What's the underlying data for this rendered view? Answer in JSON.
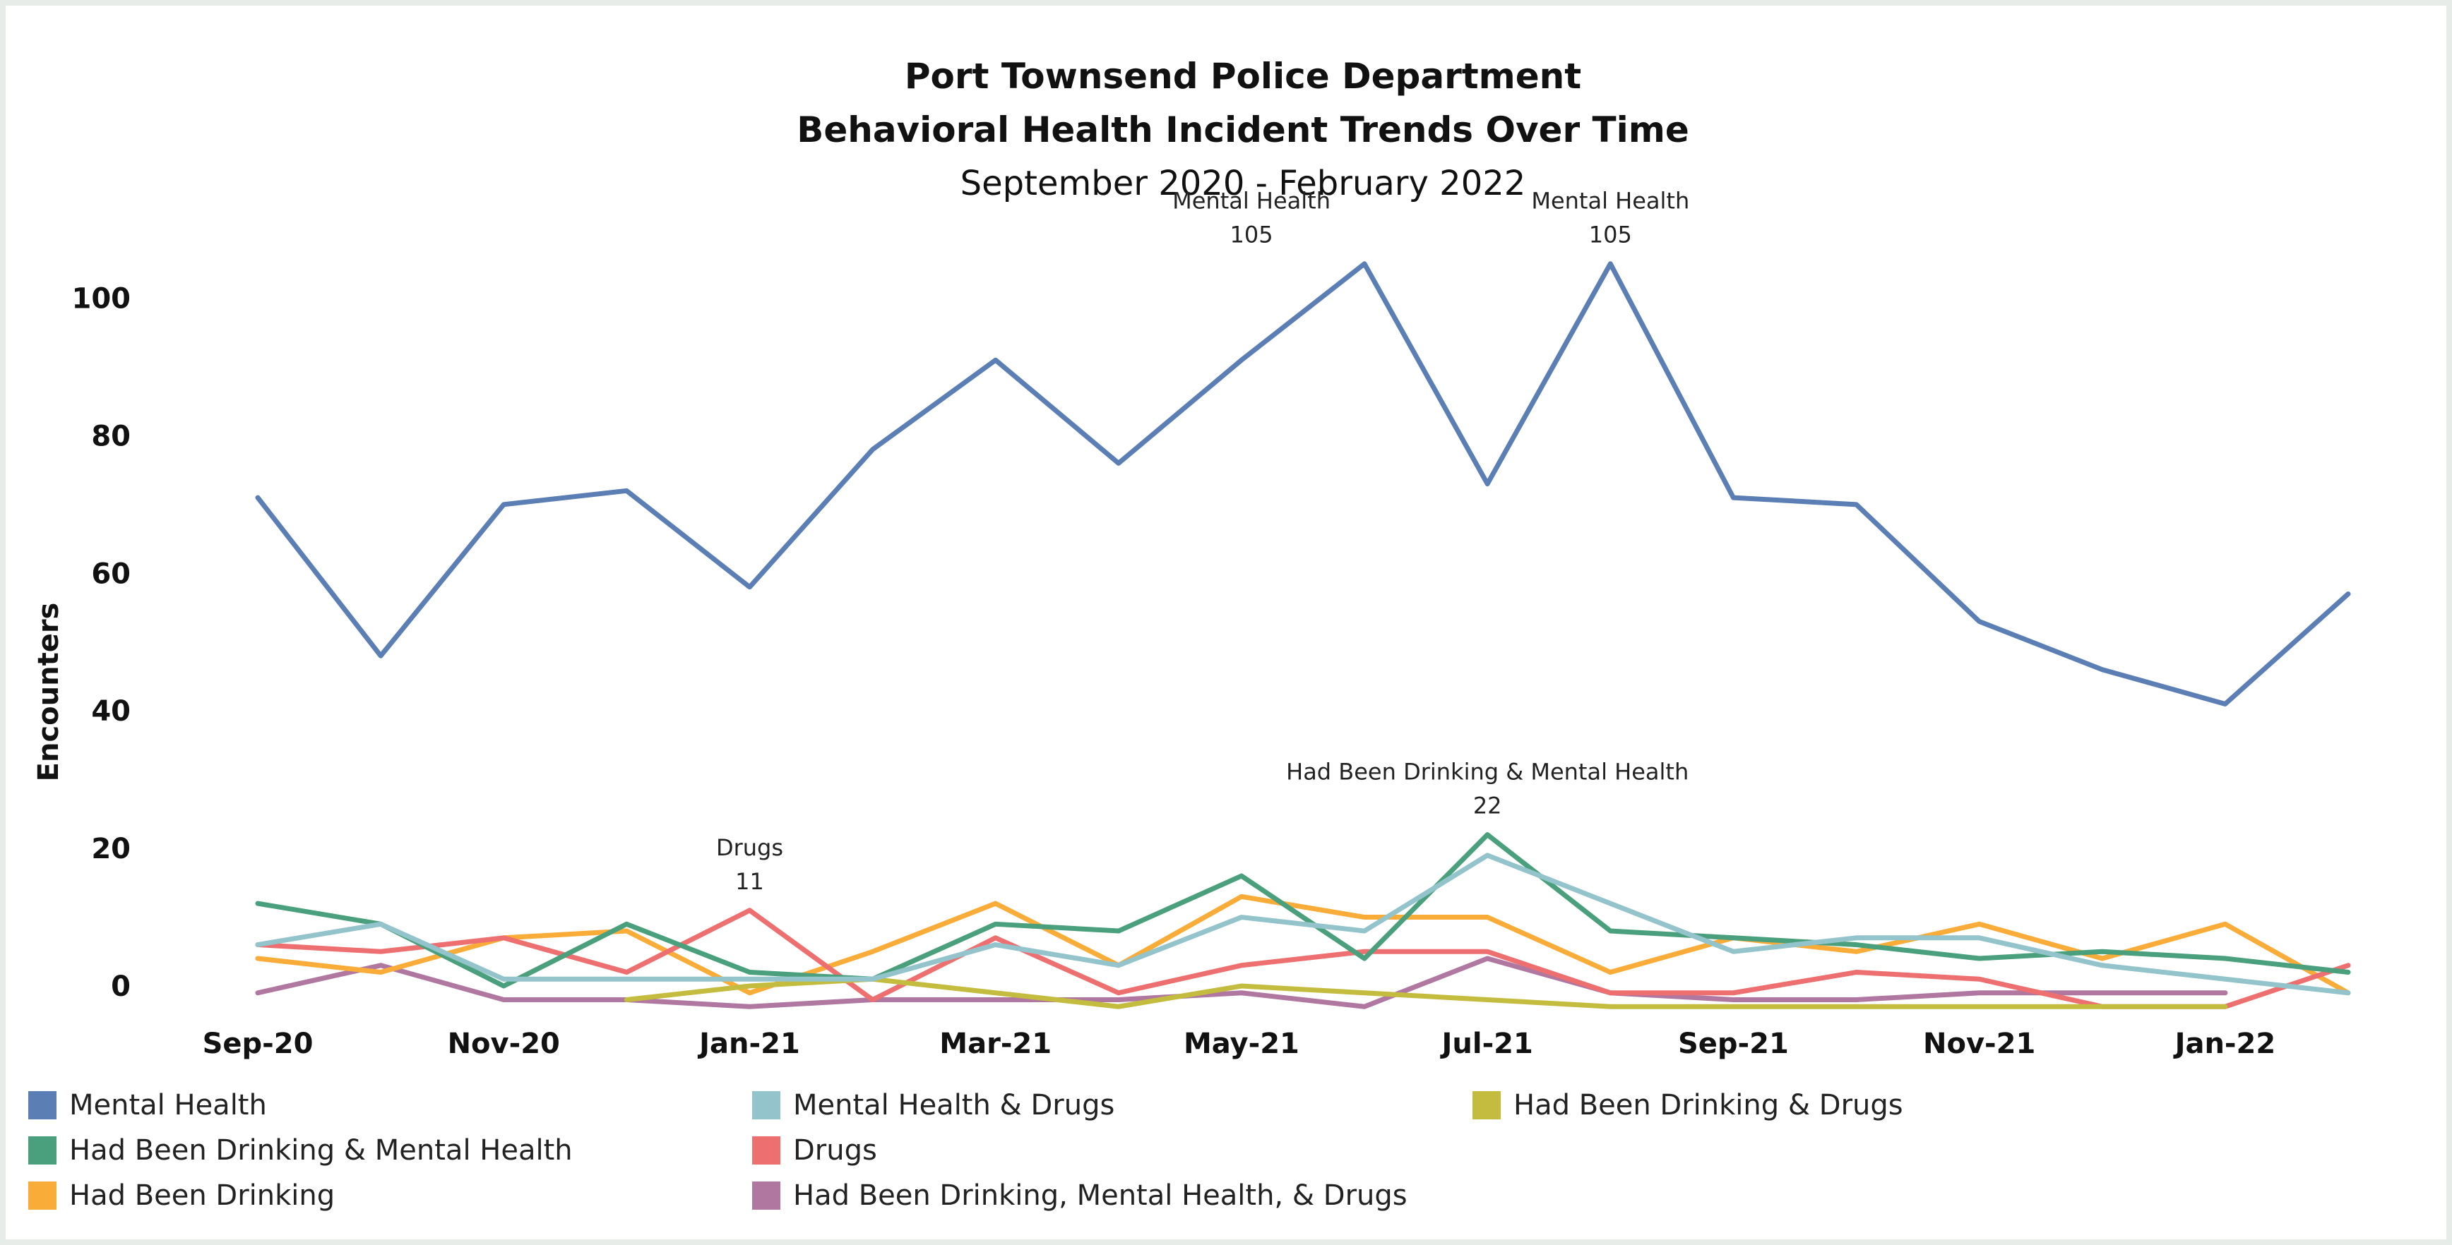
{
  "chart_data": {
    "type": "line",
    "title": "Port Townsend Police Department",
    "subtitle": "Behavioral Health Incident Trends Over Time",
    "date_range": "September 2020 - February 2022",
    "ylabel": "Encounters",
    "xlabel": "",
    "ylim": [
      -4,
      110
    ],
    "yticks": [
      0,
      20,
      40,
      60,
      80,
      100
    ],
    "grid": false,
    "legend_position": "bottom",
    "x": [
      "Sep-20",
      "Oct-20",
      "Nov-20",
      "Dec-20",
      "Jan-21",
      "Feb-21",
      "Mar-21",
      "Apr-21",
      "May-21",
      "Jun-21",
      "Jul-21",
      "Aug-21",
      "Sep-21",
      "Oct-21",
      "Nov-21",
      "Dec-21",
      "Jan-22",
      "Feb-22"
    ],
    "x_tick_labels": [
      "Sep-20",
      "",
      "Nov-20",
      "",
      "Jan-21",
      "",
      "Mar-21",
      "",
      "May-21",
      "",
      "Jul-21",
      "",
      "Sep-21",
      "",
      "Nov-21",
      "",
      "Jan-22",
      ""
    ],
    "series": [
      {
        "name": "Mental Health",
        "color": "#5b7fb5",
        "values": [
          71,
          48,
          70,
          72,
          58,
          78,
          91,
          76,
          91,
          105,
          73,
          105,
          71,
          70,
          53,
          46,
          41,
          57
        ]
      },
      {
        "name": "Mental Health & Drugs",
        "color": "#93c3cb",
        "values": [
          6,
          9,
          1,
          1,
          1,
          1,
          6,
          3,
          10,
          8,
          19,
          12,
          5,
          7,
          7,
          3,
          1,
          -1
        ]
      },
      {
        "name": "Had Been Drinking & Drugs",
        "color": "#c4bc3e",
        "values": [
          null,
          null,
          null,
          -2,
          0,
          1,
          -1,
          -3,
          0,
          -1,
          -2,
          -3,
          -3,
          -3,
          -3,
          -3,
          -3,
          null
        ]
      },
      {
        "name": "Had Been Drinking & Mental Health",
        "color": "#4aa07c",
        "values": [
          12,
          9,
          0,
          9,
          2,
          1,
          9,
          8,
          16,
          4,
          22,
          8,
          7,
          6,
          4,
          5,
          4,
          2
        ]
      },
      {
        "name": "Drugs",
        "color": "#ee6f6f",
        "values": [
          6,
          5,
          7,
          2,
          11,
          -2,
          7,
          -1,
          3,
          5,
          5,
          -1,
          -1,
          2,
          1,
          -3,
          -3,
          3
        ]
      },
      {
        "name": "Had Been Drinking",
        "color": "#f9ac38",
        "values": [
          4,
          2,
          7,
          8,
          -1,
          5,
          12,
          3,
          13,
          10,
          10,
          2,
          7,
          5,
          9,
          4,
          9,
          -1
        ]
      },
      {
        "name": "Had Been Drinking, Mental Health, & Drugs",
        "color": "#b077a1",
        "values": [
          -1,
          3,
          -2,
          -2,
          -3,
          -2,
          -2,
          -2,
          -1,
          -3,
          4,
          -1,
          -2,
          -2,
          -1,
          -1,
          -1,
          null
        ]
      }
    ],
    "annotations": [
      {
        "series": "Mental Health",
        "x": "Jun-21",
        "label": "Mental Health",
        "value": "105"
      },
      {
        "series": "Mental Health",
        "x": "Aug-21",
        "label": "Mental Health",
        "value": "105"
      },
      {
        "series": "Had Been Drinking & Mental Health",
        "x": "Jul-21",
        "label": "Had Been Drinking & Mental Health",
        "value": "22"
      },
      {
        "series": "Drugs",
        "x": "Jan-21",
        "label": "Drugs",
        "value": "11"
      }
    ]
  }
}
